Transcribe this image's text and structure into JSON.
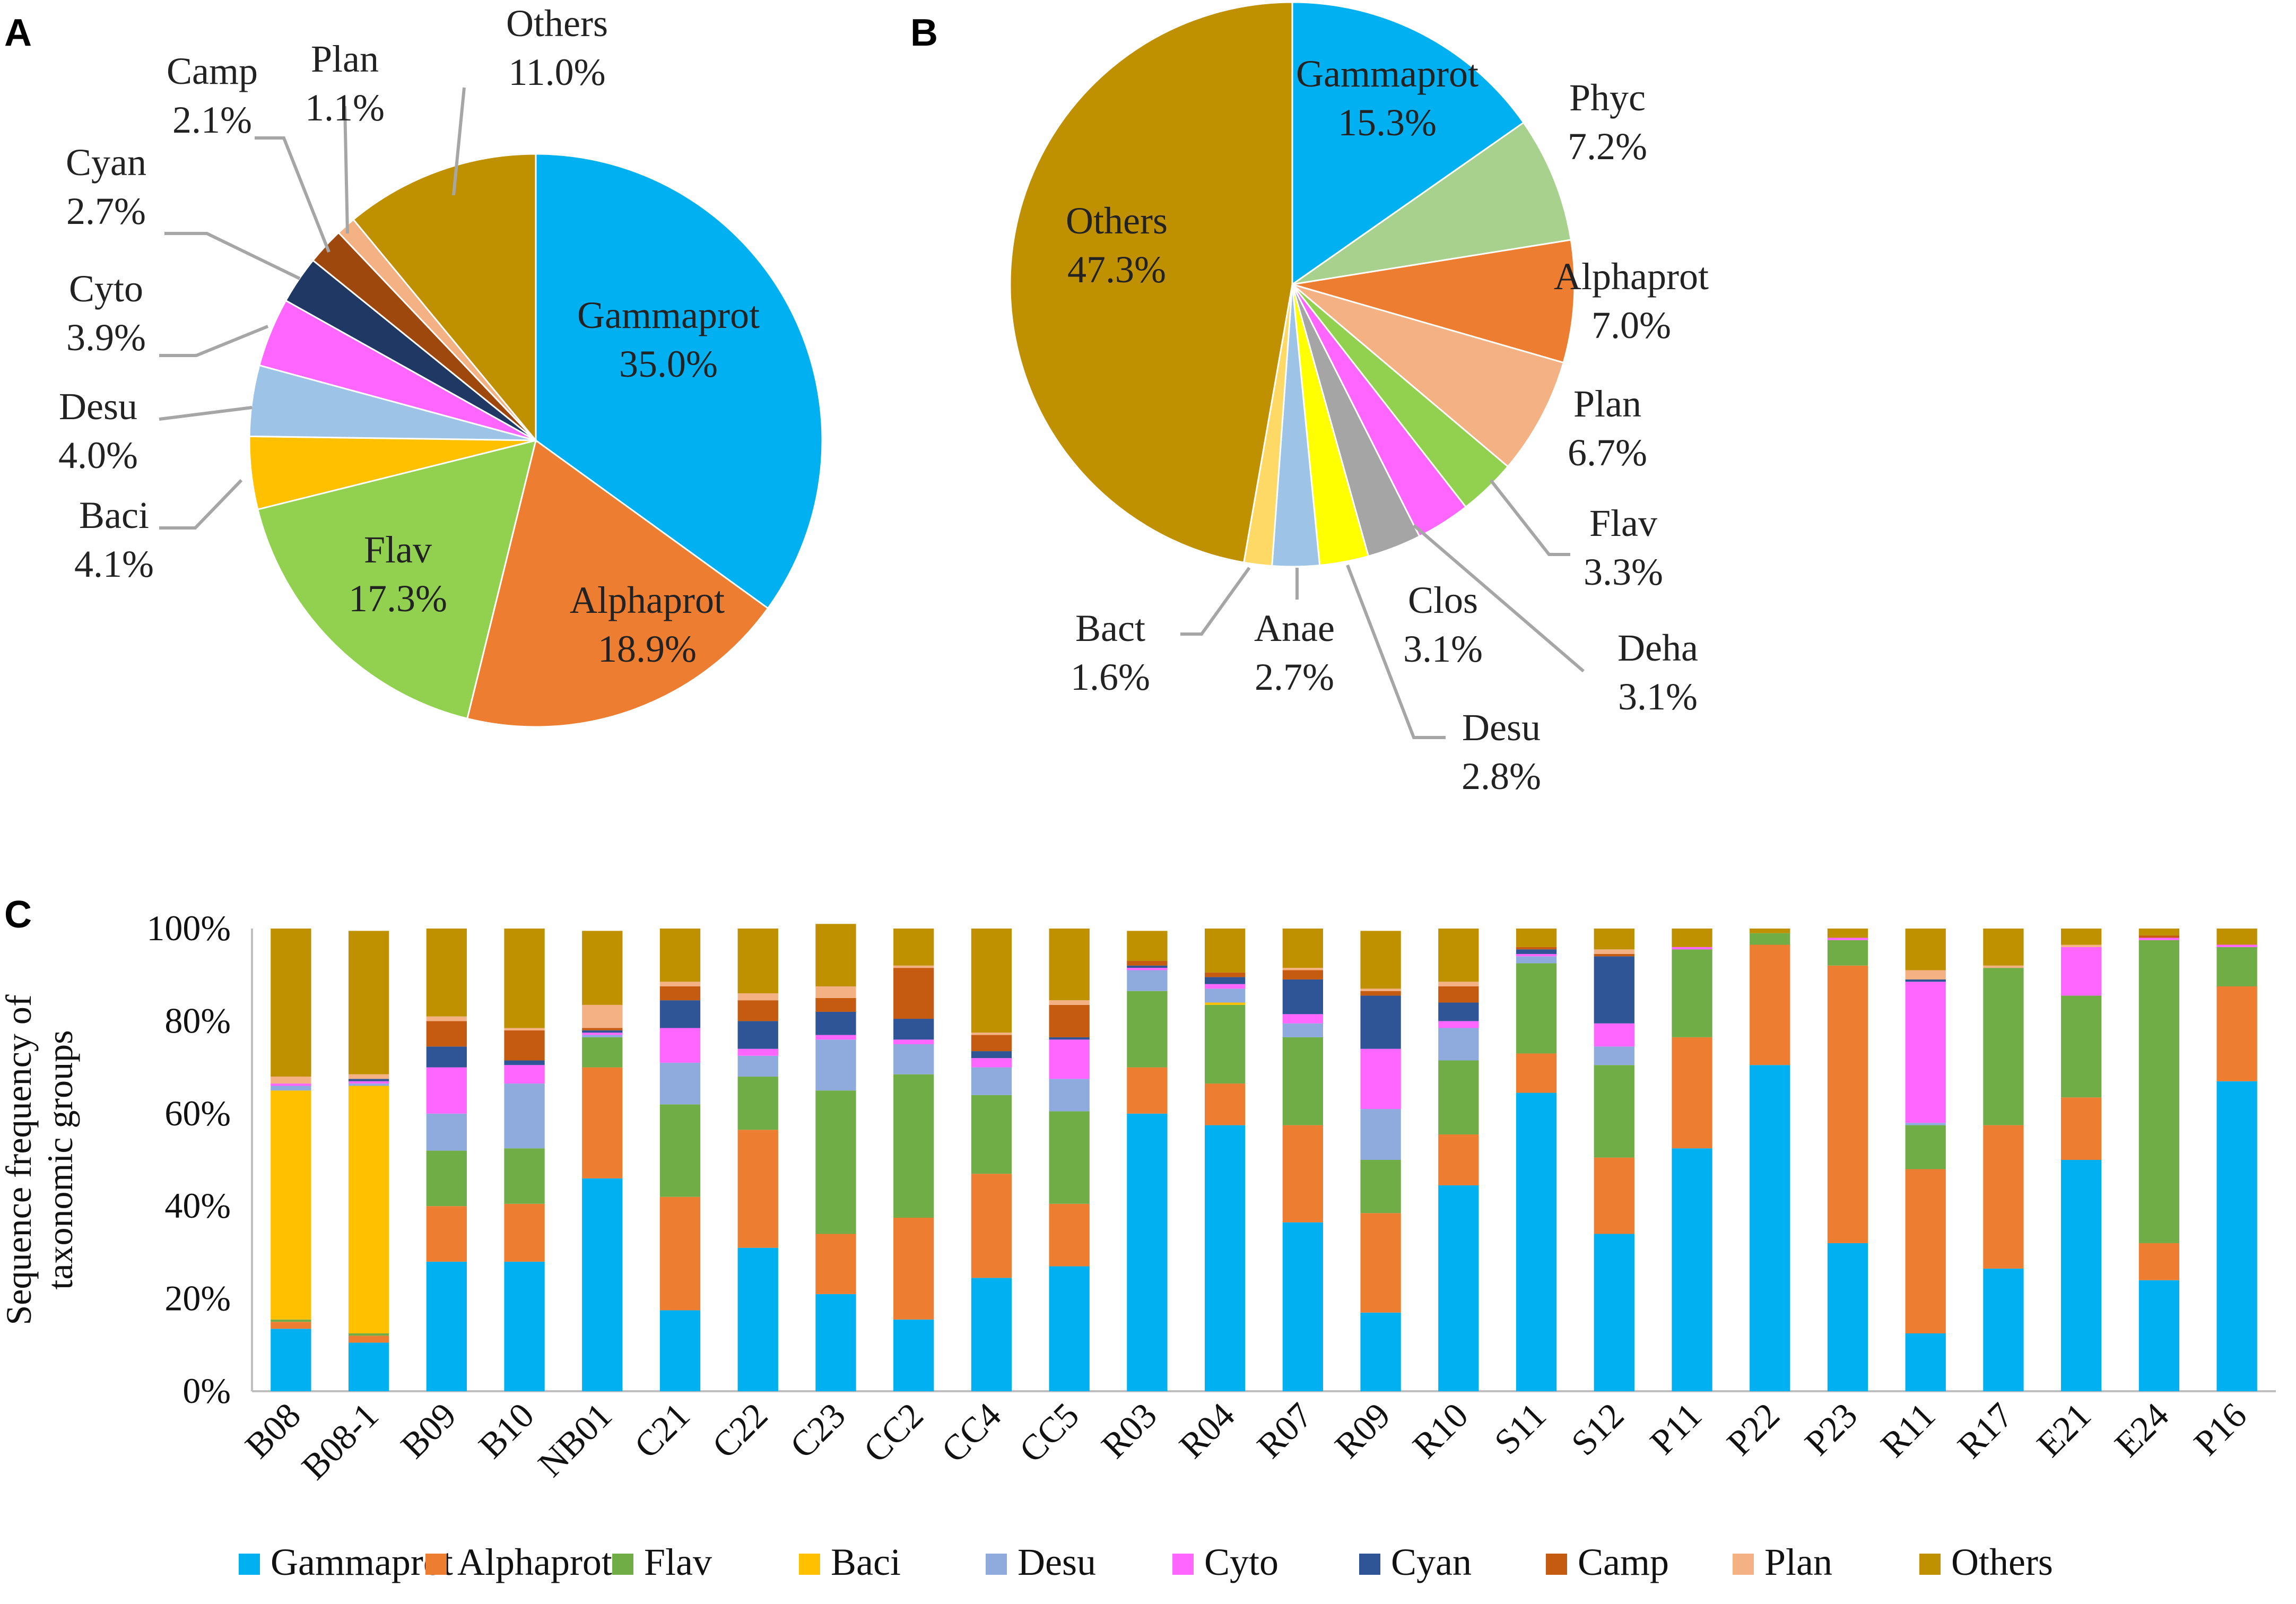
{
  "chart_data": [
    {
      "panel": "A",
      "type": "pie",
      "slices": [
        {
          "label": "Gammaprot",
          "pct": "35.0%",
          "value": 35.0,
          "color": "#00B0F0"
        },
        {
          "label": "Alphaprot",
          "pct": "18.9%",
          "value": 18.9,
          "color": "#ED7D31"
        },
        {
          "label": "Flav",
          "pct": "17.3%",
          "value": 17.3,
          "color": "#92D050"
        },
        {
          "label": "Baci",
          "pct": "4.1%",
          "value": 4.1,
          "color": "#FFC000"
        },
        {
          "label": "Desu",
          "pct": "4.0%",
          "value": 4.0,
          "color": "#9DC3E6"
        },
        {
          "label": "Cyto",
          "pct": "3.9%",
          "value": 3.9,
          "color": "#FF66FF"
        },
        {
          "label": "Cyan",
          "pct": "2.7%",
          "value": 2.7,
          "color": "#203864"
        },
        {
          "label": "Camp",
          "pct": "2.1%",
          "value": 2.1,
          "color": "#9E480E"
        },
        {
          "label": "Plan",
          "pct": "1.1%",
          "value": 1.1,
          "color": "#F4B183"
        },
        {
          "label": "Others",
          "pct": "11.0%",
          "value": 11.0,
          "color": "#BF9000"
        }
      ]
    },
    {
      "panel": "B",
      "type": "pie",
      "slices": [
        {
          "label": "Gammaprot",
          "pct": "15.3%",
          "value": 15.3,
          "color": "#00B0F0"
        },
        {
          "label": "Phyc",
          "pct": "7.2%",
          "value": 7.2,
          "color": "#A9D18E"
        },
        {
          "label": "Alphaprot",
          "pct": "7.0%",
          "value": 7.0,
          "color": "#ED7D31"
        },
        {
          "label": "Plan",
          "pct": "6.7%",
          "value": 6.7,
          "color": "#F4B183"
        },
        {
          "label": "Flav",
          "pct": "3.3%",
          "value": 3.3,
          "color": "#92D050"
        },
        {
          "label": "Deha",
          "pct": "3.1%",
          "value": 3.1,
          "color": "#FF66FF"
        },
        {
          "label": "Clos",
          "pct": "3.1%",
          "value": 3.1,
          "color": "#A5A5A5"
        },
        {
          "label": "Desu",
          "pct": "2.8%",
          "value": 2.8,
          "color": "#FFFF00"
        },
        {
          "label": "Anae",
          "pct": "2.7%",
          "value": 2.7,
          "color": "#9DC3E6"
        },
        {
          "label": "Bact",
          "pct": "1.6%",
          "value": 1.6,
          "color": "#FFD966"
        },
        {
          "label": "Others",
          "pct": "47.3%",
          "value": 47.3,
          "color": "#BF9000"
        }
      ]
    },
    {
      "panel": "C",
      "type": "bar",
      "stacked": true,
      "ylabel_lines": [
        "Sequence frequency of",
        "taxonomic groups"
      ],
      "yticks": [
        "0%",
        "20%",
        "40%",
        "60%",
        "80%",
        "100%"
      ],
      "ylim": [
        0,
        100
      ],
      "categories": [
        "B08",
        "B08-1",
        "B09",
        "B10",
        "NB01",
        "C21",
        "C22",
        "C23",
        "CC2",
        "CC4",
        "CC5",
        "R03",
        "R04",
        "R07",
        "R09",
        "R10",
        "S11",
        "S12",
        "P11",
        "P22",
        "P23",
        "R11",
        "R17",
        "E21",
        "E24",
        "P16"
      ],
      "series": [
        {
          "name": "Gammaprot",
          "color": "#00B0F0",
          "values": [
            13.5,
            10.5,
            28,
            28,
            46,
            17.5,
            31,
            21,
            15.5,
            24.5,
            27,
            60,
            57.5,
            36.5,
            17,
            44.5,
            64.5,
            34,
            52.5,
            70.5,
            32,
            12.5,
            26.5,
            50,
            24,
            67
          ]
        },
        {
          "name": "Alphaprot",
          "color": "#ED7D31",
          "values": [
            1.5,
            1.5,
            12,
            12.5,
            24,
            24.5,
            25.5,
            13,
            22,
            22.5,
            13.5,
            10,
            9,
            21,
            21.5,
            11,
            8.5,
            16.5,
            24,
            26,
            60,
            35.5,
            31,
            13.5,
            8,
            20.5
          ]
        },
        {
          "name": "Flav",
          "color": "#70AD47",
          "values": [
            0.5,
            0.5,
            12,
            12,
            6.5,
            20,
            11.5,
            31,
            31,
            17,
            20,
            16.5,
            17,
            19,
            11.5,
            16,
            19.5,
            20,
            19,
            2.5,
            5.5,
            9.5,
            34,
            22,
            65.5,
            8.5
          ]
        },
        {
          "name": "Baci",
          "color": "#FFC000",
          "values": [
            49.5,
            53.5,
            0,
            0,
            0,
            0,
            0,
            0,
            0,
            0,
            0,
            0,
            0.5,
            0,
            0,
            0,
            0,
            0,
            0,
            0,
            0,
            0,
            0,
            0,
            0,
            0
          ]
        },
        {
          "name": "Desu",
          "color": "#8FAADC",
          "values": [
            1,
            0.5,
            8,
            14,
            0.5,
            9,
            4.5,
            11,
            6.5,
            6,
            7,
            4.5,
            3,
            3,
            11,
            7,
            1.5,
            4,
            0,
            0,
            0,
            0.5,
            0,
            0,
            0,
            0
          ]
        },
        {
          "name": "Cyto",
          "color": "#FF66FF",
          "values": [
            0.5,
            0.5,
            10,
            4,
            0.5,
            7.5,
            1.5,
            1,
            1,
            2,
            8.5,
            0.5,
            1,
            2,
            13,
            1.5,
            0.5,
            5,
            0.5,
            0,
            0.5,
            30.5,
            0,
            10.5,
            0.5,
            0.5
          ]
        },
        {
          "name": "Cyan",
          "color": "#2F5597",
          "values": [
            0,
            0.5,
            4.5,
            1,
            0.5,
            6,
            6,
            5,
            4.5,
            1.5,
            0.5,
            0.5,
            1.5,
            7.5,
            11.5,
            4,
            1,
            14.5,
            0,
            0,
            0,
            0.5,
            0,
            0,
            0,
            0
          ]
        },
        {
          "name": "Camp",
          "color": "#C55A11",
          "values": [
            0,
            0,
            5.5,
            6.5,
            0.5,
            3,
            4.5,
            3,
            11,
            3.5,
            7,
            1,
            1,
            2,
            1,
            3.5,
            0.5,
            0.5,
            0,
            0,
            0,
            0,
            0,
            0,
            0.5,
            0
          ]
        },
        {
          "name": "Plan",
          "color": "#F4B183",
          "values": [
            1.5,
            1,
            1,
            0.5,
            5,
            1,
            1.5,
            2.5,
            0.5,
            0.5,
            1,
            0,
            0,
            0.5,
            0.5,
            1,
            0,
            1,
            0,
            0,
            0,
            2,
            0.5,
            0.5,
            0,
            0
          ]
        },
        {
          "name": "Others",
          "color": "#BF9000",
          "values": [
            32,
            31,
            19,
            21.5,
            16,
            11.5,
            14,
            13.5,
            8,
            22.5,
            15.5,
            6.5,
            9.5,
            8.5,
            12.5,
            11.5,
            4,
            4.5,
            4,
            1,
            2,
            9,
            8,
            3.5,
            1.5,
            3.5
          ]
        }
      ]
    }
  ],
  "panels": {
    "a": "A",
    "b": "B",
    "c": "C"
  }
}
